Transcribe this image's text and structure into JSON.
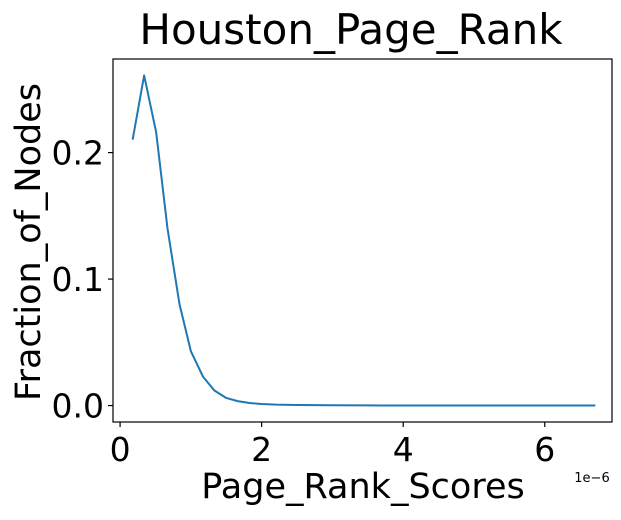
{
  "chart_data": {
    "type": "line",
    "title": "Houston_Page_Rank",
    "xlabel": "Page_Rank_Scores",
    "ylabel": "Fraction_of_Nodes",
    "x_offset_label": "1e−6",
    "x_scale_factor": 1e-06,
    "xlim": [
      -0.1,
      6.95
    ],
    "ylim": [
      -0.013,
      0.274
    ],
    "xticks": [
      0,
      2,
      4,
      6
    ],
    "xtick_labels": [
      "0",
      "2",
      "4",
      "6"
    ],
    "yticks": [
      0.0,
      0.1,
      0.2
    ],
    "ytick_labels": [
      "0.0",
      "0.1",
      "0.2"
    ],
    "grid": false,
    "series": [
      {
        "color": "#1f77b4",
        "x": [
          0.18,
          0.34,
          0.51,
          0.67,
          0.84,
          1.0,
          1.17,
          1.33,
          1.5,
          1.66,
          1.83,
          2.0,
          2.2,
          2.5,
          3.0,
          3.5,
          4.0,
          4.5,
          5.0,
          5.5,
          6.0,
          6.7
        ],
        "y": [
          0.211,
          0.261,
          0.216,
          0.14,
          0.08,
          0.043,
          0.023,
          0.012,
          0.006,
          0.0035,
          0.002,
          0.0012,
          0.0007,
          0.0004,
          0.0002,
          0.0001,
          5e-05,
          3e-05,
          2e-05,
          1e-05,
          1e-05,
          0.0
        ]
      }
    ]
  }
}
